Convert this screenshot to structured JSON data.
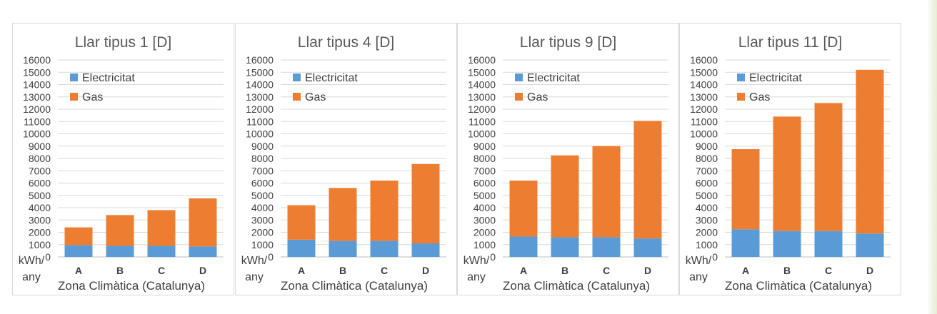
{
  "chart_data": [
    {
      "type": "bar",
      "stacked": true,
      "title": "Llar tipus 1 [D]",
      "ylabel_line1": "kWh/",
      "ylabel_line2": "any",
      "xlabel": "Zona Climàtica (Catalunya)",
      "categories": [
        "A",
        "B",
        "C",
        "D"
      ],
      "ylim": [
        0,
        16000
      ],
      "yticks": [
        "0",
        "1000",
        "2000",
        "3000",
        "4000",
        "5000",
        "6000",
        "7000",
        "8000",
        "9000",
        "10000",
        "11000",
        "12000",
        "13000",
        "14000",
        "15000",
        "16000"
      ],
      "legend": "top-left",
      "series": [
        {
          "name": "Electricitat",
          "color": "#5b9bd5",
          "values": [
            950,
            900,
            900,
            850
          ]
        },
        {
          "name": "Gas",
          "color": "#ed7d31",
          "values": [
            1450,
            2500,
            2900,
            3900
          ]
        }
      ]
    },
    {
      "type": "bar",
      "stacked": true,
      "title": "Llar tipus 4 [D]",
      "ylabel_line1": "kWh/",
      "ylabel_line2": "any",
      "xlabel": "Zona Climàtica (Catalunya)",
      "categories": [
        "A",
        "B",
        "C",
        "D"
      ],
      "ylim": [
        0,
        16000
      ],
      "yticks": [
        "0",
        "1000",
        "2000",
        "3000",
        "4000",
        "5000",
        "6000",
        "7000",
        "8000",
        "9000",
        "10000",
        "11000",
        "12000",
        "13000",
        "14000",
        "15000",
        "16000"
      ],
      "legend": "top-left",
      "series": [
        {
          "name": "Electricitat",
          "color": "#5b9bd5",
          "values": [
            1400,
            1300,
            1300,
            1100
          ]
        },
        {
          "name": "Gas",
          "color": "#ed7d31",
          "values": [
            2800,
            4300,
            4900,
            6450
          ]
        }
      ]
    },
    {
      "type": "bar",
      "stacked": true,
      "title": "Llar tipus 9 [D]",
      "ylabel_line1": "kWh/",
      "ylabel_line2": "any",
      "xlabel": "Zona Climàtica (Catalunya)",
      "categories": [
        "A",
        "B",
        "C",
        "D"
      ],
      "ylim": [
        0,
        16000
      ],
      "yticks": [
        "0",
        "1000",
        "2000",
        "3000",
        "4000",
        "5000",
        "6000",
        "7000",
        "8000",
        "9000",
        "10000",
        "11000",
        "12000",
        "13000",
        "14000",
        "15000",
        "16000"
      ],
      "legend": "top-left",
      "series": [
        {
          "name": "Electricitat",
          "color": "#5b9bd5",
          "values": [
            1650,
            1600,
            1600,
            1500
          ]
        },
        {
          "name": "Gas",
          "color": "#ed7d31",
          "values": [
            4550,
            6650,
            7400,
            9550
          ]
        }
      ]
    },
    {
      "type": "bar",
      "stacked": true,
      "title": "Llar tipus 11 [D]",
      "ylabel_line1": "kWh/",
      "ylabel_line2": "any",
      "xlabel": "Zona Climàtica (Catalunya)",
      "categories": [
        "A",
        "B",
        "C",
        "D"
      ],
      "ylim": [
        0,
        16000
      ],
      "yticks": [
        "0",
        "1000",
        "2000",
        "3000",
        "4000",
        "5000",
        "6000",
        "7000",
        "8000",
        "9000",
        "10000",
        "11000",
        "12000",
        "13000",
        "14000",
        "15000",
        "16000"
      ],
      "legend": "top-left",
      "series": [
        {
          "name": "Electricitat",
          "color": "#5b9bd5",
          "values": [
            2250,
            2100,
            2100,
            1900
          ]
        },
        {
          "name": "Gas",
          "color": "#ed7d31",
          "values": [
            6500,
            9300,
            10400,
            13300
          ]
        }
      ]
    }
  ]
}
